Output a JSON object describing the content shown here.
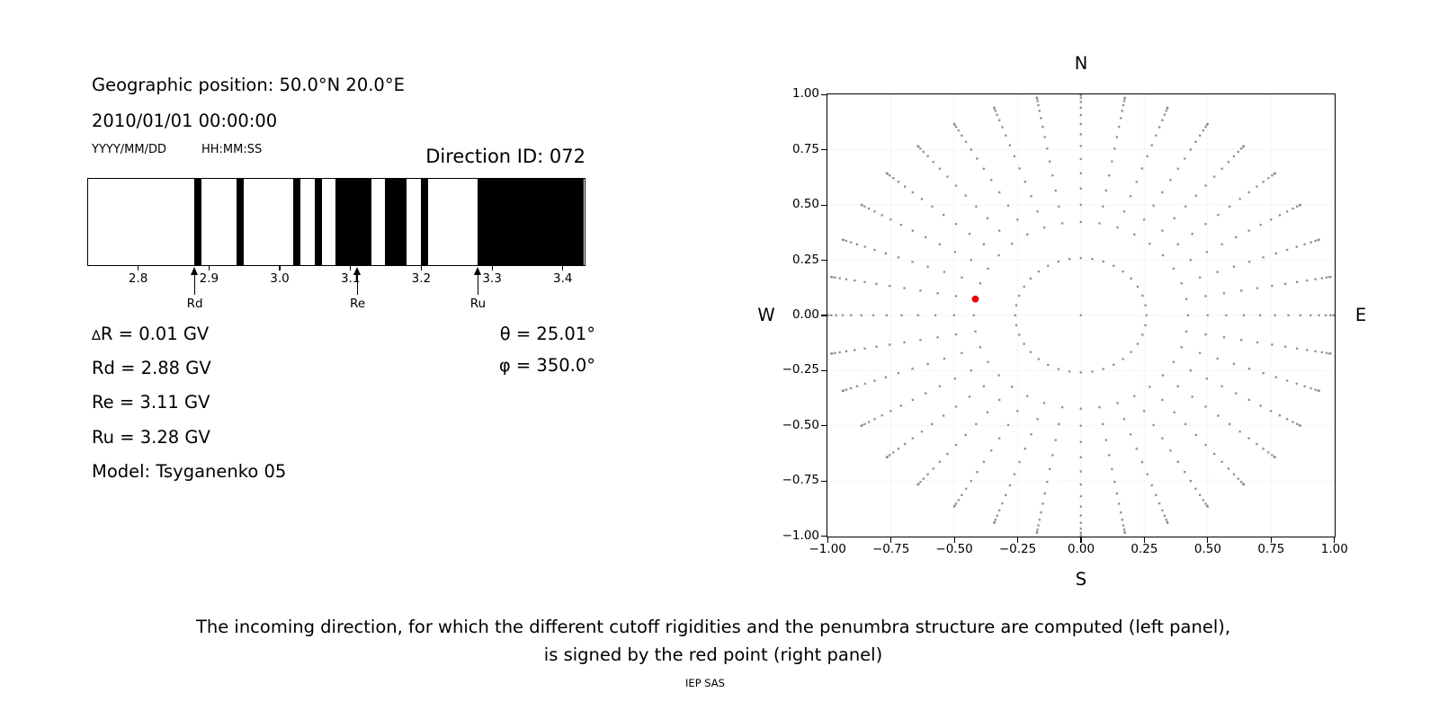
{
  "left_panel": {
    "geo_position": "Geographic position: 50.0°N 20.0°E",
    "datetime_text": "2010/01/01 00:00:00",
    "date_format": "YYYY/MM/DD",
    "time_format": "HH:MM:SS",
    "direction_id": "Direction ID: 072",
    "delta_r": "∆R = 0.01 GV",
    "rd": "Rd = 2.88 GV",
    "re": "Re = 3.11 GV",
    "ru": "Ru = 3.28 GV",
    "model": "Model: Tsyganenko 05",
    "theta": "θ = 25.01°",
    "phi": "φ = 350.0°"
  },
  "right_panel": {
    "labels": {
      "north": "N",
      "south": "S",
      "west": "W",
      "east": "E"
    }
  },
  "caption": {
    "line1": "The incoming direction, for which the different cutoff rigidities and the penumbra structure are computed (left panel),",
    "line2": "is signed by the red point (right panel)"
  },
  "credit": "IEP SAS",
  "chart_data": [
    {
      "type": "bar",
      "xlim": [
        2.73,
        3.43
      ],
      "xticks": [
        {
          "v": 2.8,
          "label": "2.8"
        },
        {
          "v": 2.9,
          "label": "2.9"
        },
        {
          "v": 3.0,
          "label": "3.0"
        },
        {
          "v": 3.1,
          "label": "3.1"
        },
        {
          "v": 3.2,
          "label": "3.2"
        },
        {
          "v": 3.3,
          "label": "3.3"
        },
        {
          "v": 3.4,
          "label": "3.4"
        }
      ],
      "forbidden_bands_gv": [
        [
          2.88,
          2.89
        ],
        [
          2.94,
          2.95
        ],
        [
          3.02,
          3.03
        ],
        [
          3.05,
          3.06
        ],
        [
          3.08,
          3.13
        ],
        [
          3.15,
          3.18
        ],
        [
          3.2,
          3.21
        ],
        [
          3.28,
          3.43
        ]
      ],
      "markers": [
        {
          "label": "Rd",
          "v": 2.88
        },
        {
          "label": "Re",
          "v": 3.11
        },
        {
          "label": "Ru",
          "v": 3.28
        }
      ],
      "bar_color": "#000000"
    },
    {
      "type": "scatter",
      "xlim": [
        -1.0,
        1.0
      ],
      "ylim": [
        -1.0,
        1.0
      ],
      "xticks": [
        {
          "v": -1.0,
          "label": "−1.00"
        },
        {
          "v": -0.75,
          "label": "−0.75"
        },
        {
          "v": -0.5,
          "label": "−0.50"
        },
        {
          "v": -0.25,
          "label": "−0.25"
        },
        {
          "v": 0.0,
          "label": "0.00"
        },
        {
          "v": 0.25,
          "label": "0.25"
        },
        {
          "v": 0.5,
          "label": "0.50"
        },
        {
          "v": 0.75,
          "label": "0.75"
        },
        {
          "v": 1.0,
          "label": "1.00"
        }
      ],
      "yticks": [
        {
          "v": 1.0,
          "label": "1.00"
        },
        {
          "v": 0.75,
          "label": "0.75"
        },
        {
          "v": 0.5,
          "label": "0.50"
        },
        {
          "v": 0.25,
          "label": "0.25"
        },
        {
          "v": 0.0,
          "label": "0.00"
        },
        {
          "v": -0.25,
          "label": "−0.25"
        },
        {
          "v": -0.5,
          "label": "−0.50"
        },
        {
          "v": -0.75,
          "label": "−0.75"
        },
        {
          "v": -1.0,
          "label": "−1.00"
        }
      ],
      "grid_step": 0.25,
      "direction_grid": {
        "azimuth_step_deg": 10,
        "spoke_zenith_deg": {
          "start": 25,
          "end": 90,
          "step": 5
        },
        "ring_zenith_deg": 15,
        "center_dot": true,
        "radius_mapping": "sin(zenith)"
      },
      "red_point": {
        "x": -0.4164,
        "y": 0.0734,
        "theta_deg": 25.01,
        "phi_deg": 350.0
      },
      "colors": {
        "dot": "#8f8f8f",
        "red": "#e8000b",
        "grid": "#e4e4e4"
      }
    }
  ]
}
